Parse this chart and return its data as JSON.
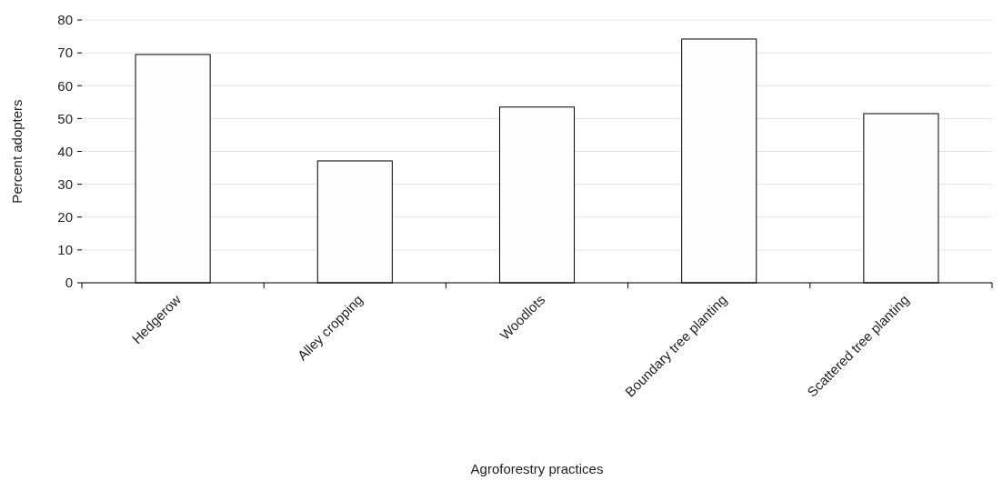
{
  "chart_data": {
    "type": "bar",
    "xlabel": "Agroforestry practices",
    "ylabel": "Percent adopters",
    "categories": [
      "Hedgerow",
      "Alley cropping",
      "Woodlots",
      "Boundary tree planting",
      "Scattered tree planting"
    ],
    "values": [
      69.5,
      37.1,
      53.5,
      74.2,
      51.5
    ],
    "color": "#fdfdfd",
    "ylim": [
      0,
      80
    ],
    "yticks": [
      0,
      10,
      20,
      30,
      40,
      50,
      60,
      70,
      80
    ],
    "grid": "y"
  }
}
